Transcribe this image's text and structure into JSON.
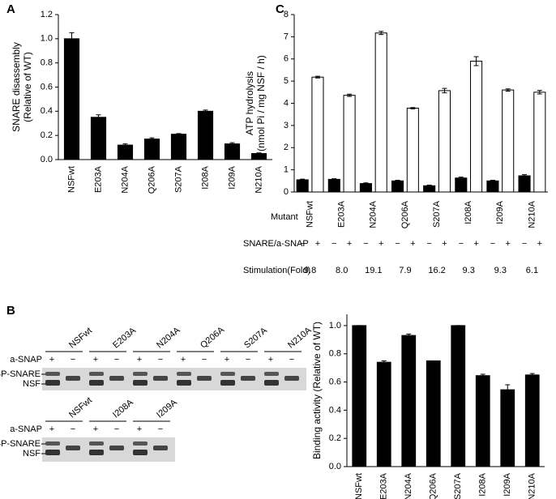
{
  "chart_data": [
    {
      "type": "bar",
      "panel": "A",
      "ylabel": [
        "SNARE disassembly",
        "(Relative of WT)"
      ],
      "categories": [
        "NSFwt",
        "E203A",
        "N204A",
        "Q206A",
        "S207A",
        "I208A",
        "I209A",
        "N210A"
      ],
      "values": [
        1.0,
        0.35,
        0.12,
        0.17,
        0.21,
        0.4,
        0.13,
        0.05
      ],
      "errors": [
        0.05,
        0.02,
        0.01,
        0.01,
        0.005,
        0.01,
        0.01,
        0.005
      ],
      "color": "#000000",
      "ylim": [
        0,
        1.2
      ],
      "yticks": [
        {
          "value": 0,
          "label": "0.0"
        },
        0.2,
        0.4,
        0.6,
        0.8,
        {
          "value": 1,
          "label": "1.0"
        },
        1.2
      ]
    },
    {
      "type": "grouped_bar",
      "panel": "C",
      "ylabel": [
        "ATP hydrolysis",
        "(nmol Pi / mg NSF / h)"
      ],
      "categories": [
        "NSFwt",
        "E203A",
        "N204A",
        "Q206A",
        "S207A",
        "I208A",
        "I209A",
        "N210A"
      ],
      "series": [
        {
          "name": "−",
          "color": "#000000",
          "values": [
            0.55,
            0.57,
            0.38,
            0.5,
            0.28,
            0.63,
            0.5,
            0.73
          ],
          "errors": [
            0.03,
            0.03,
            0.03,
            0.03,
            0.03,
            0.04,
            0.03,
            0.05
          ]
        },
        {
          "name": "+",
          "color": "#ffffff",
          "values": [
            5.18,
            4.36,
            7.17,
            3.78,
            4.57,
            5.9,
            4.6,
            4.5
          ],
          "errors": [
            0.04,
            0.05,
            0.07,
            0.03,
            0.1,
            0.2,
            0.05,
            0.08
          ]
        }
      ],
      "ylim": [
        0,
        8
      ],
      "yticks": [
        0,
        1,
        2,
        3,
        4,
        5,
        6,
        7,
        8
      ],
      "row_labels": {
        "mutant": "Mutant",
        "treatment": "SNARE/a-SNAP",
        "stimulation": "Stimulation(Fold)"
      },
      "stimulation": [
        "9.8",
        "8.0",
        "19.1",
        "7.9",
        "16.2",
        "9.3",
        "9.3",
        "6.1"
      ]
    },
    {
      "type": "bar",
      "ylabel": [
        "Binding activity (Relative of WT)"
      ],
      "categories": [
        "NSFwt",
        "E203A",
        "N204A",
        "Q206A",
        "S207A",
        "I208A",
        "I209A",
        "N210A"
      ],
      "values": [
        1.0,
        0.74,
        0.93,
        0.75,
        1.0,
        0.645,
        0.545,
        0.65
      ],
      "errors": [
        0,
        0.01,
        0.01,
        0,
        0,
        0.01,
        0.035,
        0.01
      ],
      "color": "#000000",
      "ylim": [
        0,
        1.08
      ],
      "yticks": [
        {
          "value": 0,
          "label": "0.0"
        },
        0.2,
        0.4,
        0.6,
        0.8,
        {
          "value": 1,
          "label": "1.0"
        }
      ]
    }
  ],
  "gel_figure": {
    "panel": "B",
    "row_label": "a-SNAP",
    "plus": "+",
    "minus": "−",
    "band_labels": [
      "MBP-SNARE",
      "NSF"
    ],
    "top_samples": [
      "NSFwt",
      "E203A",
      "N204A",
      "Q206A",
      "S207A",
      "N210A"
    ],
    "bottom_samples": [
      "NSFwt",
      "I208A",
      "I209A"
    ]
  }
}
